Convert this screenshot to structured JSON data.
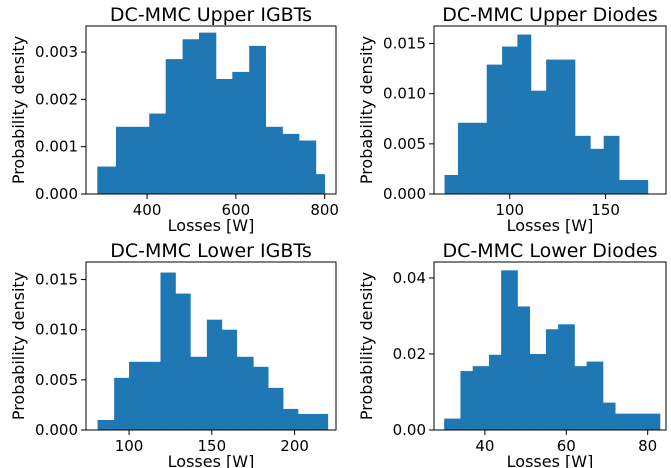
{
  "chart_data": [
    {
      "type": "bar",
      "title": "DC-MMC Upper IGBTs",
      "xlabel": "Losses [W]",
      "ylabel": "Probability density",
      "xlim": [
        262.5,
        825.5
      ],
      "ylim": [
        0,
        0.00355
      ],
      "xticks": [
        400,
        600,
        800
      ],
      "xtick_labels": [
        "400",
        "600",
        "800"
      ],
      "yticks": [
        0,
        0.001,
        0.002,
        0.003
      ],
      "ytick_labels": [
        "0.000",
        "0.001",
        "0.002",
        "0.003"
      ],
      "bin_edges": [
        288,
        330,
        367,
        405,
        442,
        480,
        517,
        555,
        592,
        630,
        667,
        705,
        742,
        780,
        800
      ],
      "values": [
        0.00058,
        0.00142,
        0.00142,
        0.0017,
        0.00285,
        0.00327,
        0.00341,
        0.00243,
        0.00258,
        0.00313,
        0.00142,
        0.00127,
        0.00113,
        0.00042
      ],
      "grid": false
    },
    {
      "type": "bar",
      "title": "DC-MMC Upper Diodes",
      "xlabel": "Losses [W]",
      "ylabel": "Probability density",
      "xlim": [
        60.5,
        181.5
      ],
      "ylim": [
        0,
        0.01675
      ],
      "xticks": [
        100,
        150
      ],
      "xtick_labels": [
        "100",
        "150"
      ],
      "yticks": [
        0,
        0.005,
        0.01,
        0.015
      ],
      "ytick_labels": [
        "0.000",
        "0.005",
        "0.010",
        "0.015"
      ],
      "bin_edges": [
        66,
        73,
        81,
        88,
        96,
        104,
        111,
        119,
        127,
        134,
        142,
        149,
        157,
        165,
        172
      ],
      "values": [
        0.0019,
        0.0071,
        0.0071,
        0.0129,
        0.0147,
        0.0159,
        0.0103,
        0.0134,
        0.0134,
        0.0058,
        0.0045,
        0.0058,
        0.0014,
        0.0014
      ],
      "grid": false
    },
    {
      "type": "bar",
      "title": "DC-MMC Lower IGBTs",
      "xlabel": "Losses [W]",
      "ylabel": "Probability density",
      "xlim": [
        74,
        225
      ],
      "ylim": [
        0,
        0.01675
      ],
      "xticks": [
        100,
        150,
        200
      ],
      "xtick_labels": [
        "100",
        "150",
        "200"
      ],
      "yticks": [
        0,
        0.005,
        0.01,
        0.015
      ],
      "ytick_labels": [
        "0.000",
        "0.005",
        "0.010",
        "0.015"
      ],
      "bin_edges": [
        81,
        91,
        100,
        109,
        119,
        128,
        137,
        147,
        156,
        165,
        175,
        184,
        193,
        202,
        212,
        220
      ],
      "values": [
        0.001,
        0.0052,
        0.0068,
        0.0068,
        0.0157,
        0.0136,
        0.0073,
        0.011,
        0.01,
        0.0073,
        0.0063,
        0.0042,
        0.0021,
        0.0016,
        0.0016
      ],
      "grid": false
    },
    {
      "type": "bar",
      "title": "DC-MMC Lower Diodes",
      "xlabel": "Losses [W]",
      "ylabel": "Probability density",
      "xlim": [
        27.5,
        84.5
      ],
      "ylim": [
        0,
        0.0442
      ],
      "xticks": [
        40,
        60,
        80
      ],
      "xtick_labels": [
        "40",
        "60",
        "80"
      ],
      "yticks": [
        0,
        0.02,
        0.04
      ],
      "ytick_labels": [
        "0.00",
        "0.02",
        "0.04"
      ],
      "bin_edges": [
        30,
        34,
        37,
        41,
        44,
        48,
        51,
        55,
        58,
        62,
        65,
        69,
        72,
        76,
        79,
        83
      ],
      "values": [
        0.003,
        0.0155,
        0.0168,
        0.0198,
        0.042,
        0.0325,
        0.02,
        0.0265,
        0.0278,
        0.0168,
        0.018,
        0.0072,
        0.0043,
        0.0043,
        0.0043
      ],
      "grid": false
    }
  ]
}
